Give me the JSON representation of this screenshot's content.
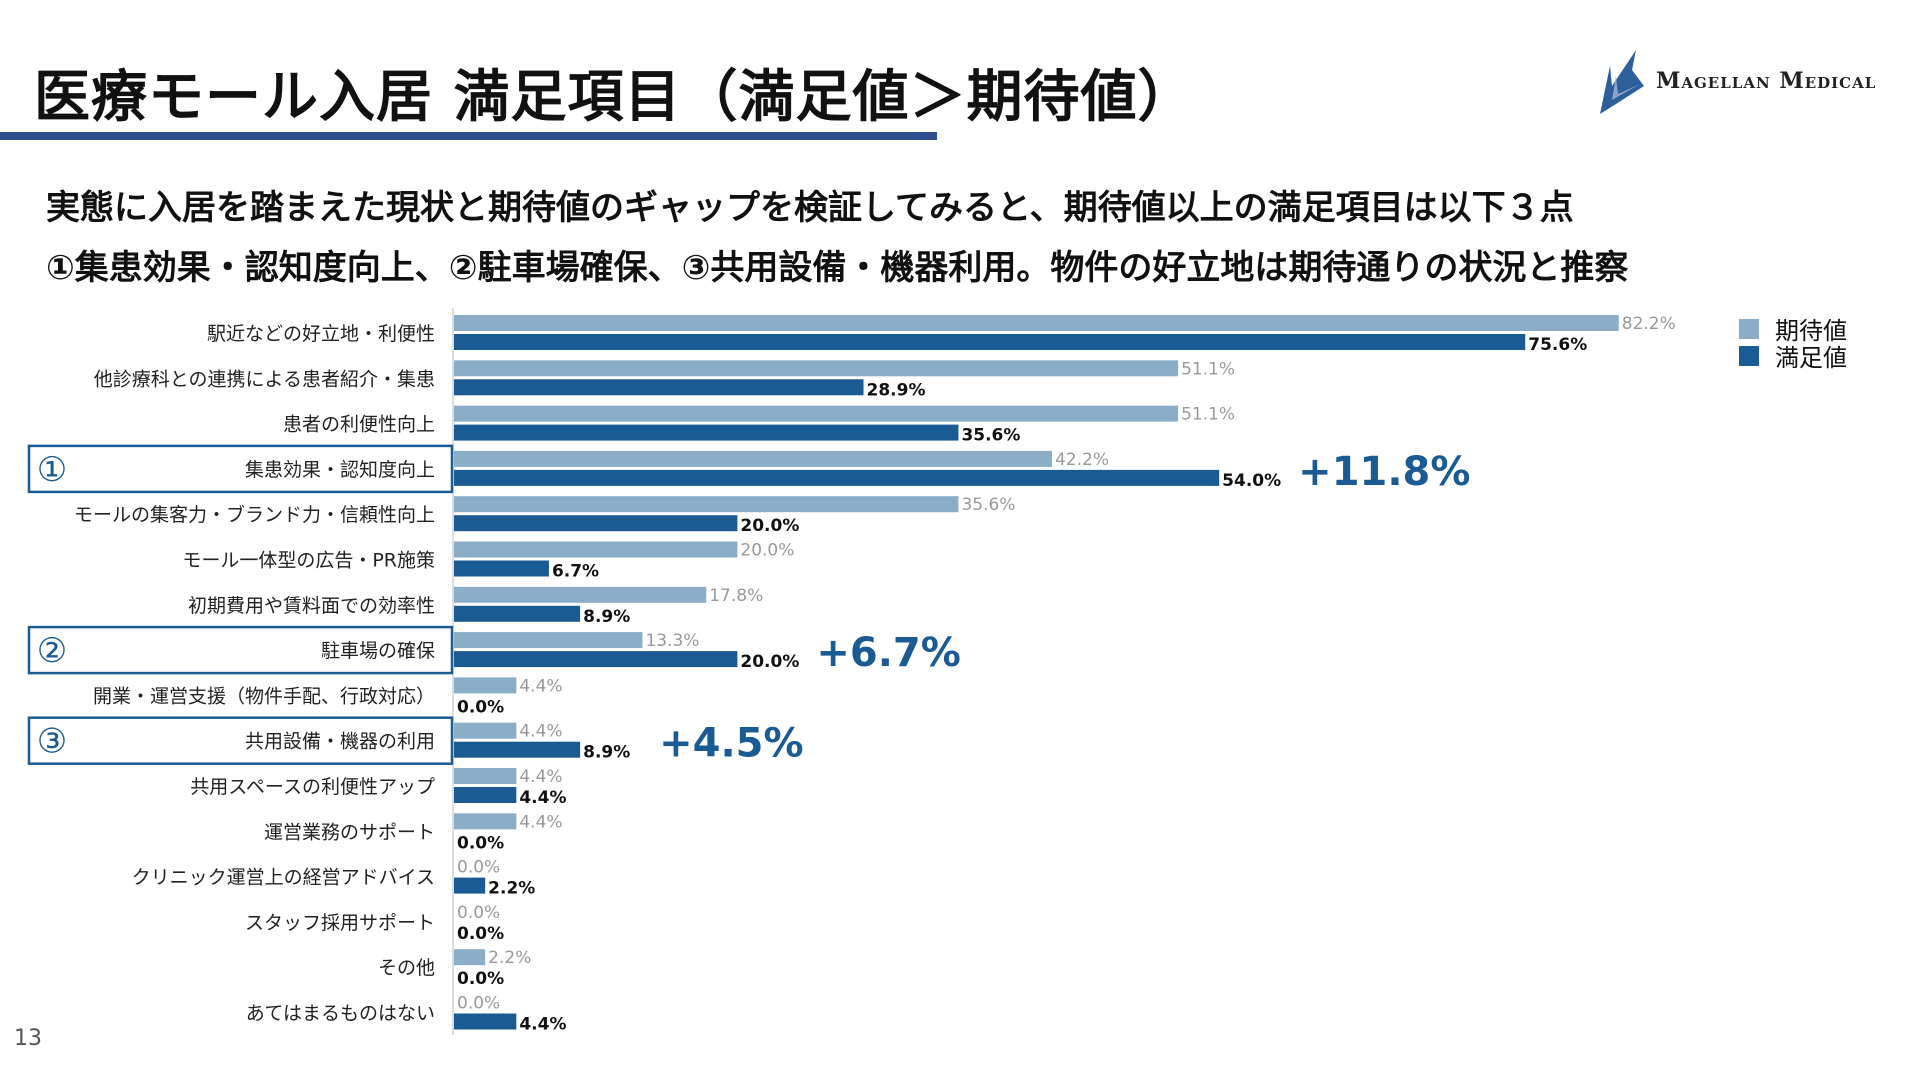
{
  "title": "医療モール入居 満足項目（満足値＞期待値）",
  "subtitle_lines": [
    "実態に入居を踏まえた現状と期待値のギャップを検証してみると、期待値以上の満足項目は以下３点",
    "①集患効果・認知度向上、②駐車場確保、③共用設備・機器利用。物件の好立地は期待通りの状況と推察"
  ],
  "logo": {
    "text": "Magellan Medical",
    "colors": [
      "#2d5f9a",
      "#8fa3c8"
    ]
  },
  "page_number": "13",
  "colors": {
    "expected": "#8aadc8",
    "satisfied": "#1b5b94",
    "highlight": "#1b5b94",
    "title_bar": "#2f4f8f"
  },
  "chart_data": {
    "type": "bar",
    "orientation": "horizontal",
    "categories": [
      "駅近などの好立地・利便性",
      "他診療科との連携による患者紹介・集患",
      "患者の利便性向上",
      "集患効果・認知度向上",
      "モールの集客力・ブランド力・信頼性向上",
      "モール一体型の広告・PR施策",
      "初期費用や賃料面での効率性",
      "駐車場の確保",
      "開業・運営支援（物件手配、行政対応）",
      "共用設備・機器の利用",
      "共用スペースの利便性アップ",
      "運営業務のサポート",
      "クリニック運営上の経営アドバイス",
      "スタッフ採用サポート",
      "その他",
      "あてはまるものはない"
    ],
    "series": [
      {
        "name": "期待値",
        "values": [
          82.2,
          51.1,
          51.1,
          42.2,
          35.6,
          20.0,
          17.8,
          13.3,
          4.4,
          4.4,
          4.4,
          4.4,
          0.0,
          0.0,
          2.2,
          0.0
        ]
      },
      {
        "name": "満足値",
        "values": [
          75.6,
          28.9,
          35.6,
          54.0,
          20.0,
          6.7,
          8.9,
          20.0,
          0.0,
          8.9,
          4.4,
          0.0,
          2.2,
          0.0,
          0.0,
          4.4
        ]
      }
    ],
    "value_suffix": "%",
    "legend": "top-right",
    "highlights": [
      {
        "index": 3,
        "marker": "①",
        "delta": "+11.8%"
      },
      {
        "index": 7,
        "marker": "②",
        "delta": "+6.7%"
      },
      {
        "index": 9,
        "marker": "③",
        "delta": "+4.5%"
      }
    ]
  }
}
